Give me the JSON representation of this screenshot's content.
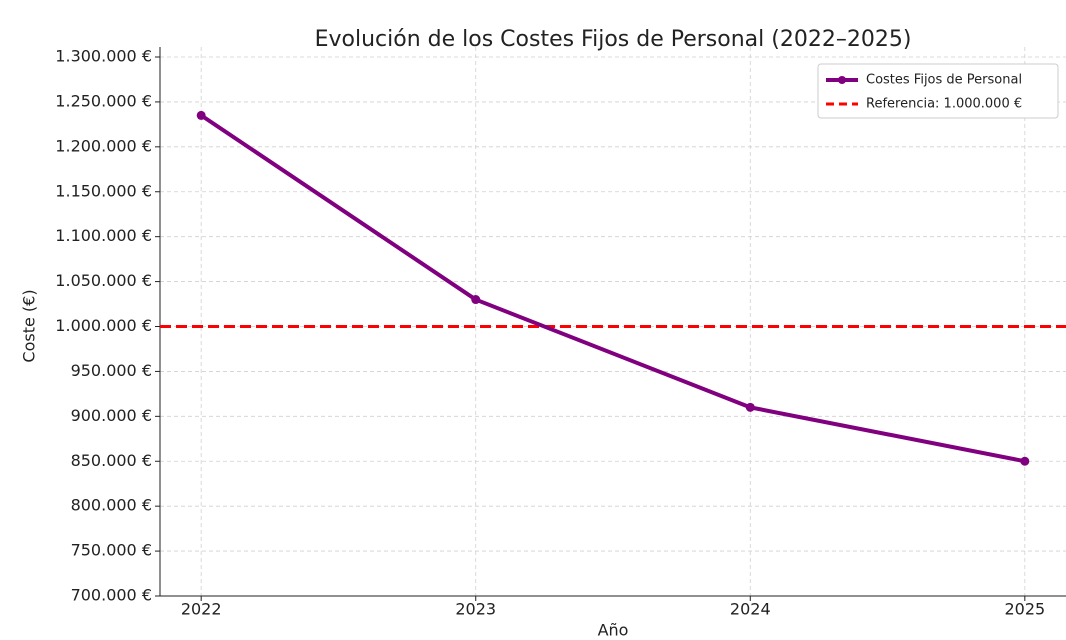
{
  "chart_data": {
    "type": "line",
    "title": "Evolución de los Costes Fijos de Personal (2022–2025)",
    "x_label": "Año",
    "y_label": "Coste (€)",
    "x": [
      2022,
      2023,
      2024,
      2025
    ],
    "series": [
      {
        "name": "Costes Fijos de Personal",
        "color": "#800080",
        "values": [
          1235000,
          1030000,
          910000,
          850000
        ]
      }
    ],
    "reference_line": {
      "name": "Referencia: 1.000.000 €",
      "value": 1000000,
      "color": "#ff0000",
      "style": "dashed"
    },
    "xlim": [
      2021.85,
      2025.15
    ],
    "xticks": [
      2022,
      2023,
      2024,
      2025
    ],
    "ylim": [
      700000,
      1300000
    ],
    "yticks": [
      {
        "value": 700000,
        "label": "700.000 €"
      },
      {
        "value": 750000,
        "label": "750.000 €"
      },
      {
        "value": 800000,
        "label": "800.000 €"
      },
      {
        "value": 850000,
        "label": "850.000 €"
      },
      {
        "value": 900000,
        "label": "900.000 €"
      },
      {
        "value": 950000,
        "label": "950.000 €"
      },
      {
        "value": 1000000,
        "label": "1.000.000 €"
      },
      {
        "value": 1050000,
        "label": "1.050.000 €"
      },
      {
        "value": 1100000,
        "label": "1.100.000 €"
      },
      {
        "value": 1150000,
        "label": "1.150.000 €"
      },
      {
        "value": 1200000,
        "label": "1.200.000 €"
      },
      {
        "value": 1250000,
        "label": "1.250.000 €"
      },
      {
        "value": 1300000,
        "label": "1.300.000 €"
      }
    ],
    "grid": true,
    "legend": "upper right"
  }
}
